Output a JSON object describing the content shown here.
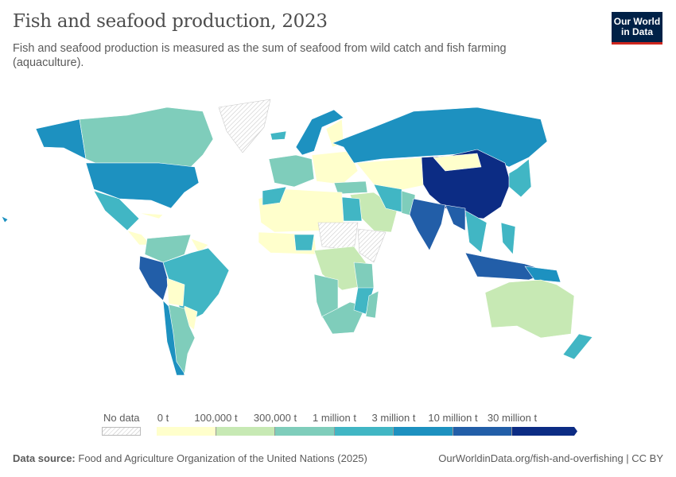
{
  "header": {
    "title": "Fish and seafood production, 2023",
    "subtitle": "Fish and seafood production is measured as the sum of seafood from wild catch and fish farming (aquaculture).",
    "logo_text": "Our World in Data"
  },
  "legend": {
    "no_data_label": "No data",
    "bins": [
      {
        "label": "0 t",
        "color": "#ffffcc"
      },
      {
        "label": "100,000 t",
        "color": "#c7e9b4"
      },
      {
        "label": "300,000 t",
        "color": "#7fcdbb"
      },
      {
        "label": "1 million t",
        "color": "#41b6c4"
      },
      {
        "label": "3 million t",
        "color": "#1d91c0"
      },
      {
        "label": "10 million t",
        "color": "#225ea8"
      },
      {
        "label": "30 million t",
        "color": "#0c2c84"
      }
    ]
  },
  "footer": {
    "source_label": "Data source:",
    "source": "Food and Agriculture Organization of the United Nations (2025)",
    "url_license": "OurWorldinData.org/fish-and-overfishing | CC BY"
  }
}
